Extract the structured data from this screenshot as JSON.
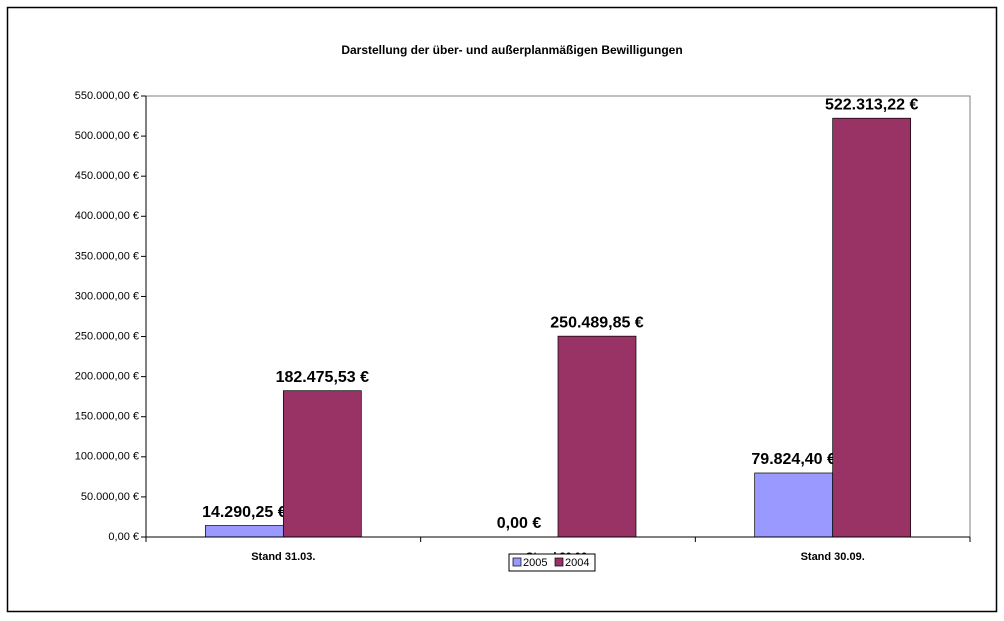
{
  "chart_data": {
    "type": "bar",
    "title": "Darstellung der über- und außerplanmäßigen Bewilligungen",
    "categories": [
      "Stand 31.03.",
      "Stand 30.06.",
      "Stand 30.09."
    ],
    "series": [
      {
        "name": "2005",
        "color": "#9999ff",
        "values": [
          14290.25,
          0,
          79824.4
        ],
        "value_labels": [
          "14.290,25 €",
          "0,00 €",
          "79.824,40 €"
        ]
      },
      {
        "name": "2004",
        "color": "#993366",
        "values": [
          182475.53,
          250489.85,
          522313.22
        ],
        "value_labels": [
          "182.475,53 €",
          "250.489,85 €",
          "522.313,22 €"
        ]
      }
    ],
    "ylim": [
      0,
      550000
    ],
    "yticks": [
      {
        "value": 0,
        "label": "0,00 €"
      },
      {
        "value": 50000,
        "label": "50.000,00 €"
      },
      {
        "value": 100000,
        "label": "100.000,00 €"
      },
      {
        "value": 150000,
        "label": "150.000,00 €"
      },
      {
        "value": 200000,
        "label": "200.000,00 €"
      },
      {
        "value": 250000,
        "label": "250.000,00 €"
      },
      {
        "value": 300000,
        "label": "300.000,00 €"
      },
      {
        "value": 350000,
        "label": "350.000,00 €"
      },
      {
        "value": 400000,
        "label": "400.000,00 €"
      },
      {
        "value": 450000,
        "label": "450.000,00 €"
      },
      {
        "value": 500000,
        "label": "500.000,00 €"
      },
      {
        "value": 550000,
        "label": "550.000,00 €"
      }
    ],
    "grid": false,
    "legend": "bottom"
  }
}
